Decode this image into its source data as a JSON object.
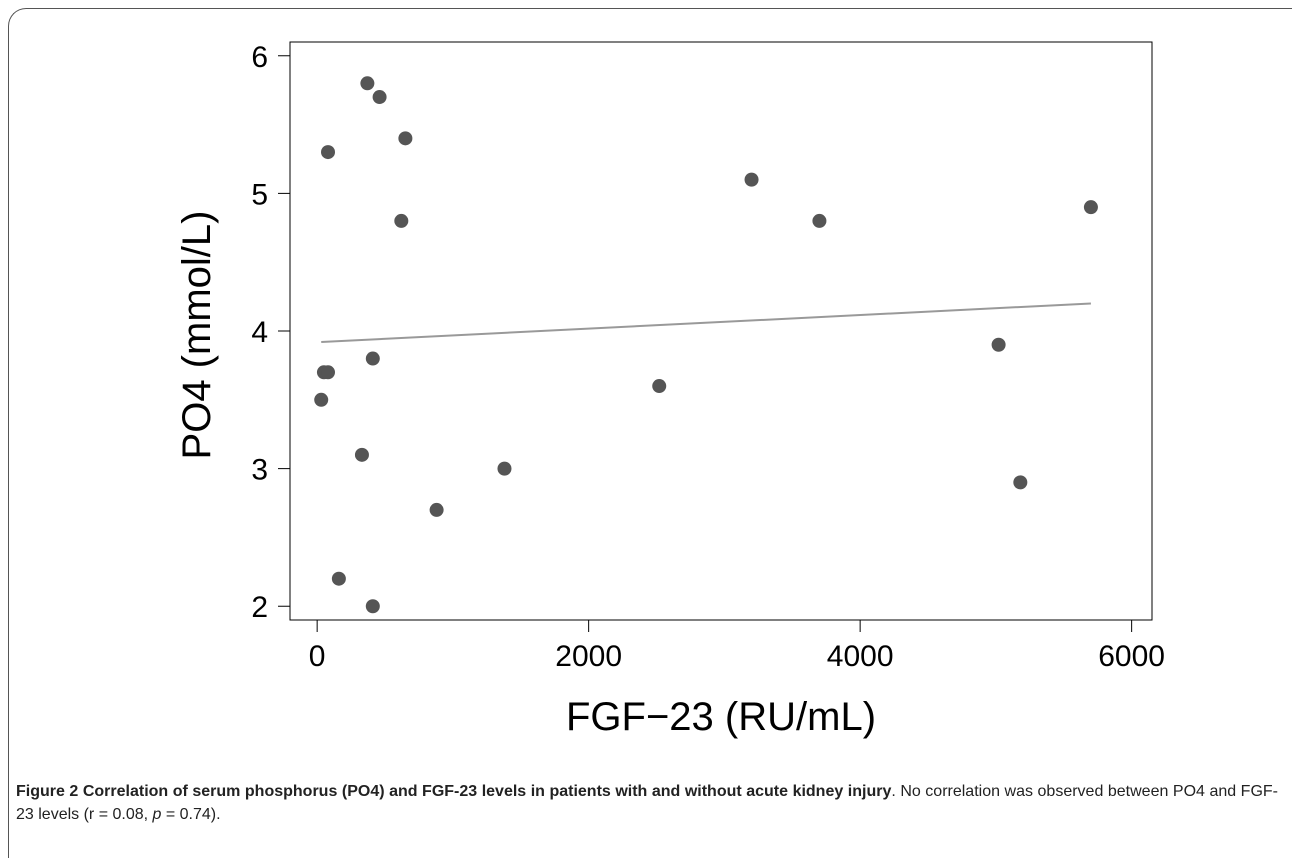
{
  "chart_data": {
    "type": "scatter",
    "xlabel": "FGF−23 (RU/mL)",
    "ylabel": "PO4 (mmol/L)",
    "xlim": [
      -200,
      6150
    ],
    "ylim": [
      1.9,
      6.1
    ],
    "xticks": [
      0,
      2000,
      4000,
      6000
    ],
    "yticks": [
      2,
      3,
      4,
      5,
      6
    ],
    "grid": false,
    "points": [
      {
        "x": 30,
        "y": 3.5
      },
      {
        "x": 50,
        "y": 3.7
      },
      {
        "x": 80,
        "y": 3.7
      },
      {
        "x": 80,
        "y": 5.3
      },
      {
        "x": 160,
        "y": 2.2
      },
      {
        "x": 330,
        "y": 3.1
      },
      {
        "x": 370,
        "y": 5.8
      },
      {
        "x": 410,
        "y": 3.8
      },
      {
        "x": 410,
        "y": 2.0
      },
      {
        "x": 460,
        "y": 5.7
      },
      {
        "x": 620,
        "y": 4.8
      },
      {
        "x": 650,
        "y": 5.4
      },
      {
        "x": 880,
        "y": 2.7
      },
      {
        "x": 1380,
        "y": 3.0
      },
      {
        "x": 2520,
        "y": 3.6
      },
      {
        "x": 3200,
        "y": 5.1
      },
      {
        "x": 3700,
        "y": 4.8
      },
      {
        "x": 5020,
        "y": 3.9
      },
      {
        "x": 5180,
        "y": 2.9
      },
      {
        "x": 5700,
        "y": 4.9
      }
    ],
    "fit_line": {
      "x": [
        30,
        5700
      ],
      "y": [
        3.92,
        4.2
      ]
    },
    "colors": {
      "points": "#555555",
      "fit_line": "#999999",
      "axis": "#000000"
    }
  },
  "caption": {
    "head": "Figure 2 Correlation of serum phosphorus (PO4) and FGF-23 levels in patients with and without acute kidney injury",
    "body_before_p": ". No correlation was observed between PO4 and FGF-23 levels (r = 0.08, ",
    "p_symbol": "p",
    "body_after_p": " = 0.74)."
  }
}
